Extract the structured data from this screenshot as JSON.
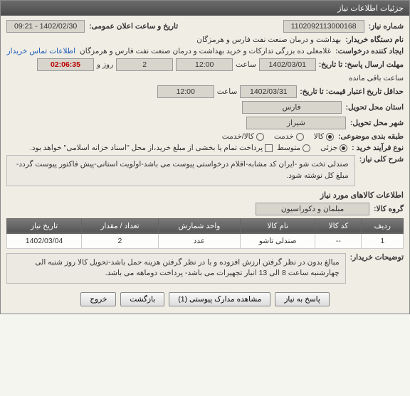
{
  "panel_title": "جزئیات اطلاعات نیاز",
  "fields": {
    "req_no_label": "شماره نیاز:",
    "req_no": "1102092113000168",
    "announce_label": "تاریخ و ساعت اعلان عمومی:",
    "announce_val": "1402/02/30 - 09:21",
    "org_label": "نام دستگاه خریدار:",
    "org_val": "بهداشت و درمان صنعت نفت فارس و هرمزگان",
    "creator_label": "ایجاد کننده درخواست:",
    "creator_val": "غلامعلی ده بزرگی تدارکات و خرید بهداشت و درمان صنعت نفت فارس و هرمزگان",
    "contact_link": "اطلاعات تماس خریدار",
    "deadline_send_label": "مهلت ارسال پاسخ: تا تاریخ:",
    "deadline_send_date": "1402/03/01",
    "time_label": "ساعت",
    "deadline_send_time": "12:00",
    "days_and": "روز و",
    "days_val": "2",
    "countdown": "02:06:35",
    "remaining": "ساعت باقی مانده",
    "valid_label": "حداقل تاریخ اعتبار قیمت: تا تاریخ:",
    "valid_date": "1402/03/31",
    "valid_time": "12:00",
    "province_label": "استان محل تحویل:",
    "province_val": "فارس",
    "city_label": "شهر محل تحویل:",
    "city_val": "شیراز",
    "class_label": "طبقه بندی موضوعی:",
    "class_opts": {
      "kala": "کالا",
      "service": "خدمت",
      "both": "کالا/خدمت"
    },
    "proc_label": "نوع فرآیند خرید :",
    "proc_opts": {
      "partial": "جزئی",
      "medium": "متوسط"
    },
    "pay_note": "پرداخت تمام یا بخشی از مبلغ خرید،از محل \"اسناد خزانه اسلامی\" خواهد بود.",
    "desc_label": "شرح کلی نیاز:",
    "desc_text": "صندلی تخت شو -ایران کد مشابه-اقلام درخواستی پیوست می باشد-اولویت استانی-پیش فاکتور پیوست گردد-مبلغ کل نوشته شود.",
    "goods_header": "اطلاعات کالاهای مورد نیاز",
    "group_label": "گروه کالا:",
    "group_val": "مبلمان و دکوراسیون",
    "table": {
      "headers": {
        "row": "ردیف",
        "code": "کد کالا",
        "name": "نام کالا",
        "unit": "واحد شمارش",
        "qty": "تعداد / مقدار",
        "date": "تاریخ نیاز"
      },
      "rows": [
        {
          "row": "1",
          "code": "--",
          "name": "صندلی تاشو",
          "unit": "عدد",
          "qty": "2",
          "date": "1402/03/04"
        }
      ]
    },
    "buyer_notes_label": "توضیحات خریدار:",
    "buyer_notes": "مبالغ بدون در نظر گرفتن ارزش افزوده و با در نظر گرفتن هزینه حمل باشد-تحویل کالا روز شنبه الی چهارشنبه ساعت 8 الی 13 انبار تجهیرات می باشد- پرداخت دوماهه می باشد."
  },
  "buttons": {
    "reply": "پاسخ به نیاز",
    "attachments": "مشاهده مدارک پیوستی (1)",
    "back": "بازگشت",
    "exit": "خروج"
  }
}
